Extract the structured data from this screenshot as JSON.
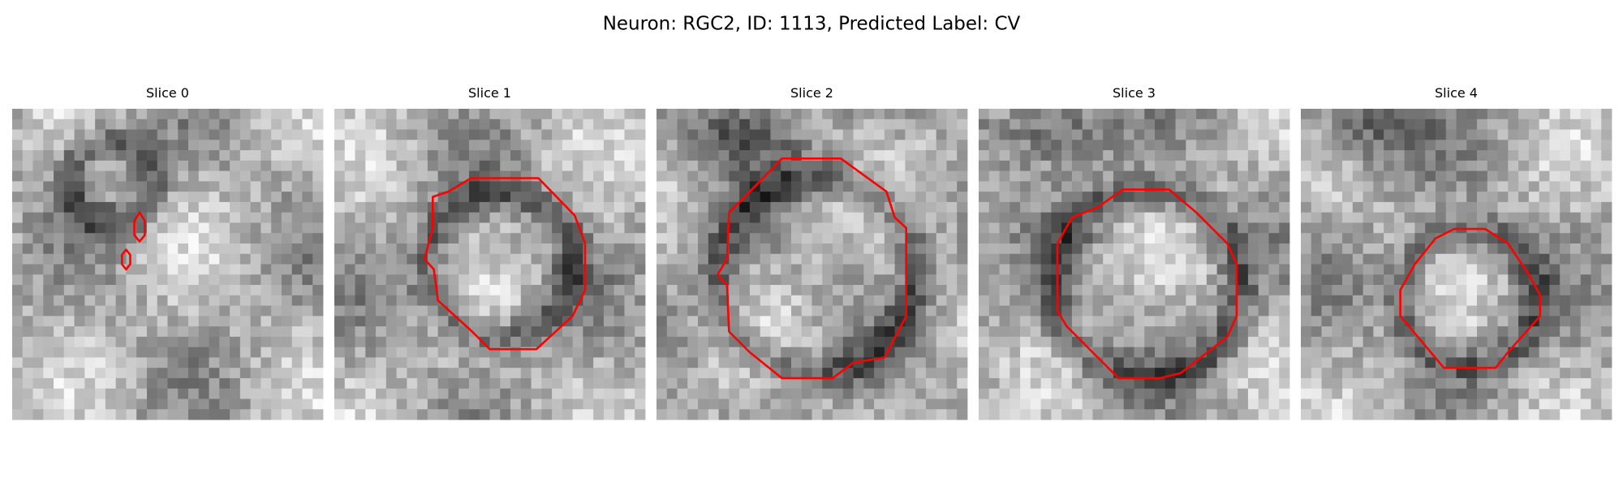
{
  "header": {
    "title": "Neuron: RGC2, ID: 1113, Predicted Label: CV"
  },
  "panels": [
    {
      "title": "Slice 0"
    },
    {
      "title": "Slice 1"
    },
    {
      "title": "Slice 2"
    },
    {
      "title": "Slice 3"
    },
    {
      "title": "Slice 4"
    }
  ]
}
